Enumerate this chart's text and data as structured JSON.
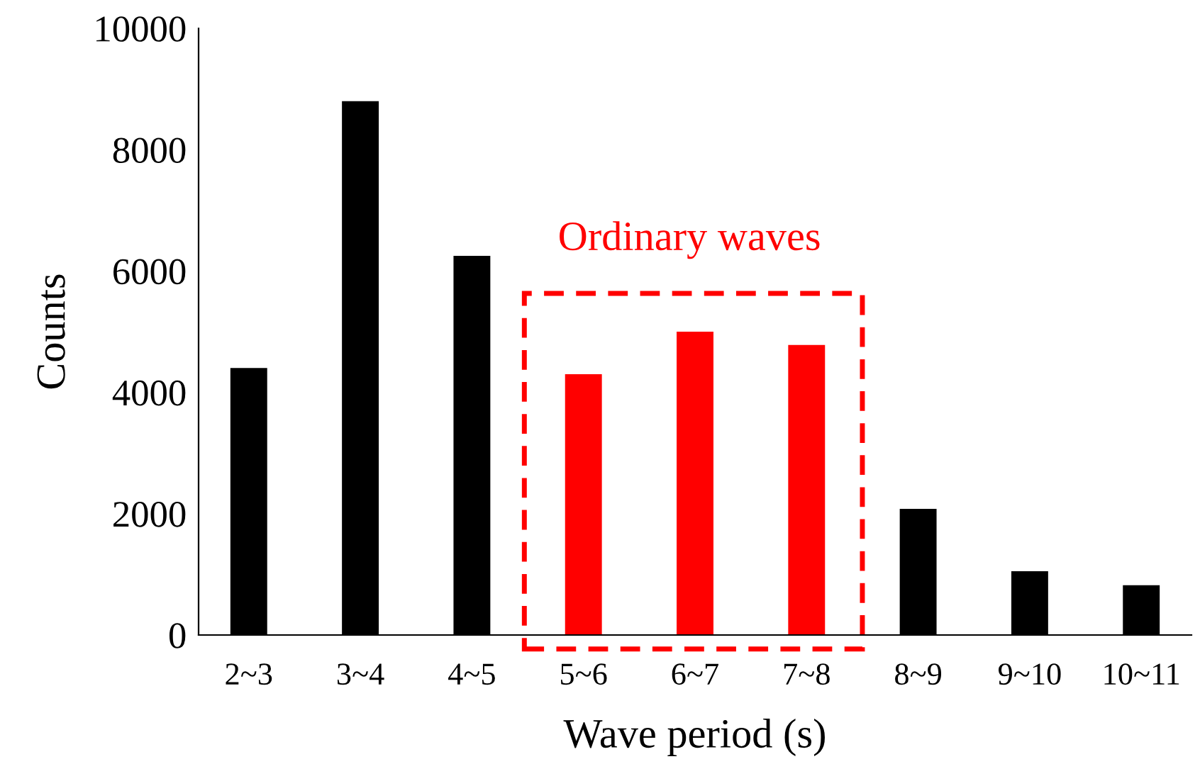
{
  "chart_data": {
    "type": "bar",
    "xlabel": "Wave period (s)",
    "ylabel": "Counts",
    "categories": [
      "2~3",
      "3~4",
      "4~5",
      "5~6",
      "6~7",
      "7~8",
      "8~9",
      "9~10",
      "10~11"
    ],
    "values": [
      4400,
      8800,
      6250,
      4300,
      5000,
      4780,
      2080,
      1050,
      820
    ],
    "colors": [
      "#000000",
      "#000000",
      "#000000",
      "#ff0000",
      "#ff0000",
      "#ff0000",
      "#000000",
      "#000000",
      "#000000"
    ],
    "ylim": [
      0,
      10000
    ],
    "yticks": [
      0,
      2000,
      4000,
      6000,
      8000,
      10000
    ],
    "grid": false,
    "annotations": [
      "Ordinary waves"
    ]
  }
}
